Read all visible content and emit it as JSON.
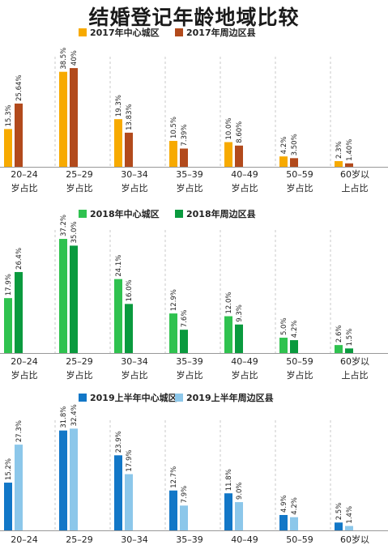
{
  "title": "结婚登记年龄地域比较",
  "colors": {
    "2017_center": "#F7AA00",
    "2017_suburb": "#B24A1C",
    "2018_center": "#2FC24F",
    "2018_suburb": "#0A9A3E",
    "2019_center": "#1277C7",
    "2019_suburb": "#8CC7EA"
  },
  "chart_data": [
    {
      "type": "bar",
      "categories": [
        [
          "20–24",
          "岁占比"
        ],
        [
          "25–29",
          "岁占比"
        ],
        [
          "30–34",
          "岁占比"
        ],
        [
          "35–39",
          "岁占比"
        ],
        [
          "40–49",
          "岁占比"
        ],
        [
          "50–59",
          "岁占比"
        ],
        [
          "60岁以",
          "上占比"
        ]
      ],
      "series": [
        {
          "name": "2017年中心城区",
          "values": [
            15.3,
            38.5,
            19.3,
            10.5,
            10.0,
            4.2,
            2.3
          ],
          "labels": [
            "15.3%",
            "38.5%",
            "19.3%",
            "10.5%",
            "10.0%",
            "4.2%",
            "2.3%"
          ],
          "color_key": "2017_center"
        },
        {
          "name": "2017年周边区县",
          "values": [
            25.64,
            40,
            13.83,
            7.39,
            8.6,
            3.5,
            1.4
          ],
          "labels": [
            "25.64%",
            "40%",
            "13.83%",
            "7.39%",
            "8.60%",
            "3.50%",
            "1.40%"
          ],
          "color_key": "2017_suburb"
        }
      ],
      "ylim": [
        0,
        42
      ]
    },
    {
      "type": "bar",
      "categories": [
        [
          "20–24",
          "岁占比"
        ],
        [
          "25–29",
          "岁占比"
        ],
        [
          "30–34",
          "岁占比"
        ],
        [
          "35–39",
          "岁占比"
        ],
        [
          "40–49",
          "岁占比"
        ],
        [
          "50–59",
          "岁占比"
        ],
        [
          "60岁以",
          "上占比"
        ]
      ],
      "series": [
        {
          "name": "2018年中心城区",
          "values": [
            17.9,
            37.2,
            24.1,
            12.9,
            12.0,
            5.0,
            2.6
          ],
          "labels": [
            "17.9%",
            "37.2%",
            "24.1%",
            "12.9%",
            "12.0%",
            "5.0%",
            "2.6%"
          ],
          "color_key": "2018_center"
        },
        {
          "name": "2018年周边区县",
          "values": [
            26.4,
            35.0,
            16.0,
            7.6,
            9.3,
            4.2,
            1.5
          ],
          "labels": [
            "26.4%",
            "35.0%",
            "16.0%",
            "7.6%",
            "9.3%",
            "4.2%",
            "1.5%"
          ],
          "color_key": "2018_suburb"
        }
      ],
      "ylim": [
        0,
        38
      ]
    },
    {
      "type": "bar",
      "categories": [
        [
          "20–24"
        ],
        [
          "25–29"
        ],
        [
          "30–34"
        ],
        [
          "35–39"
        ],
        [
          "40–49"
        ],
        [
          "50–59"
        ],
        [
          "60岁以"
        ]
      ],
      "series": [
        {
          "name": "2019上半年中心城区",
          "values": [
            15.2,
            31.8,
            23.9,
            12.7,
            11.8,
            4.9,
            2.5
          ],
          "labels": [
            "15.2%",
            "31.8%",
            "23.9%",
            "12.7%",
            "11.8%",
            "4.9%",
            "2.5%"
          ],
          "color_key": "2019_center"
        },
        {
          "name": "2019上半年周边区县",
          "values": [
            27.3,
            32.4,
            17.9,
            7.9,
            9.0,
            4.2,
            1.4
          ],
          "labels": [
            "27.3%",
            "32.4%",
            "17.9%",
            "7.9%",
            "9.0%",
            "4.2%",
            "1.4%"
          ],
          "color_key": "2019_suburb"
        }
      ],
      "ylim": [
        0,
        33
      ]
    }
  ]
}
